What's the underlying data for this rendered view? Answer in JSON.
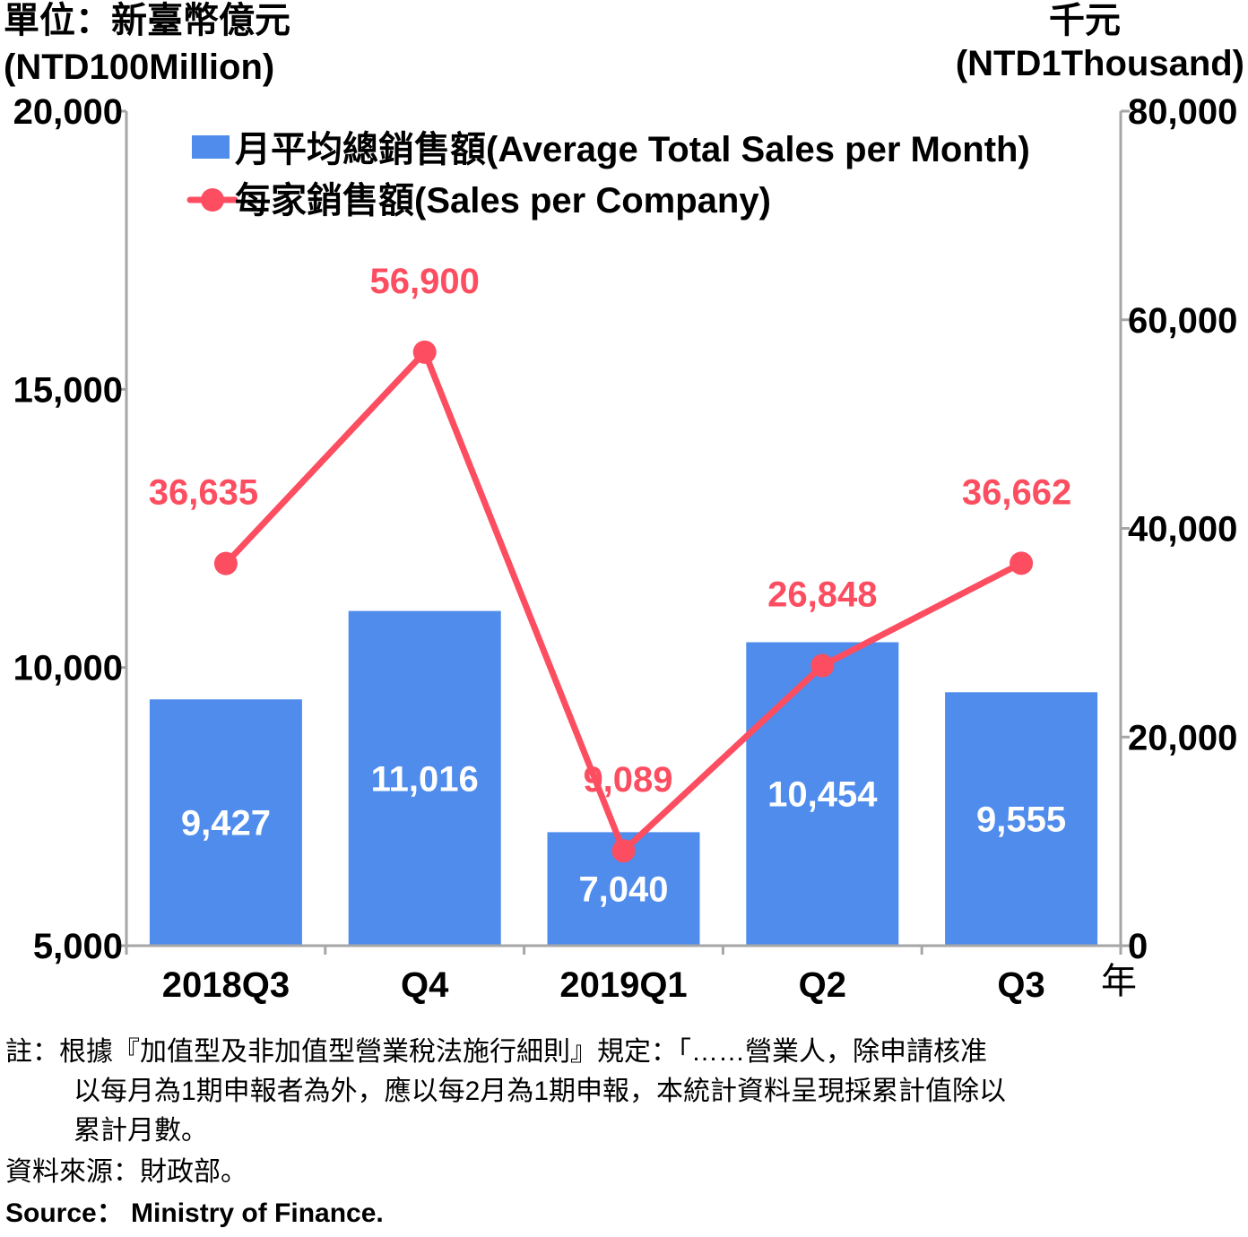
{
  "chart_data": {
    "type": "bar",
    "categories": [
      "2018Q3",
      "Q4",
      "2019Q1",
      "Q2",
      "Q3"
    ],
    "series": [
      {
        "name": "月平均總銷售額(Average Total Sales per Month)",
        "type": "bar",
        "axis": "left",
        "values": [
          9427,
          11016,
          7040,
          10454,
          9555
        ],
        "labels": [
          "9,427",
          "11,016",
          "7,040",
          "10,454",
          "9,555"
        ],
        "color": "#4f8cec"
      },
      {
        "name": "每家銷售額(Sales per Company)",
        "type": "line",
        "axis": "right",
        "values": [
          36635,
          56900,
          9089,
          26848,
          36662
        ],
        "labels": [
          "36,635",
          "56,900",
          "9,089",
          "26,848",
          "36,662"
        ],
        "color": "#fc4e60"
      }
    ],
    "y_left": {
      "unit_zh": "單位：新臺幣億元",
      "unit_en": "(NTD100Million)",
      "range": [
        5000,
        20000
      ],
      "ticks": [
        5000,
        10000,
        15000,
        20000
      ],
      "tick_labels": [
        "5,000",
        "10,000",
        "15,000",
        "20,000"
      ]
    },
    "y_right": {
      "unit_zh": "千元",
      "unit_en": "(NTD1Thousand)",
      "range": [
        0,
        80000
      ],
      "ticks": [
        0,
        20000,
        40000,
        60000,
        80000
      ],
      "tick_labels": [
        "0",
        "20,000",
        "40,000",
        "60,000",
        "80,000"
      ]
    },
    "x_unit": "年",
    "legend_position": "top-left",
    "grid": false
  },
  "notes": {
    "line1": "註：根據『加值型及非加值型營業稅法施行細則』規定：「……營業人，除申請核准",
    "line2": "以每月為1期申報者為外，應以每2月為1期申報，本統計資料呈現採累計值除以",
    "line3": "累計月數。",
    "source_zh": "資料來源：財政部。",
    "source_en": "Source： Ministry of Finance."
  }
}
